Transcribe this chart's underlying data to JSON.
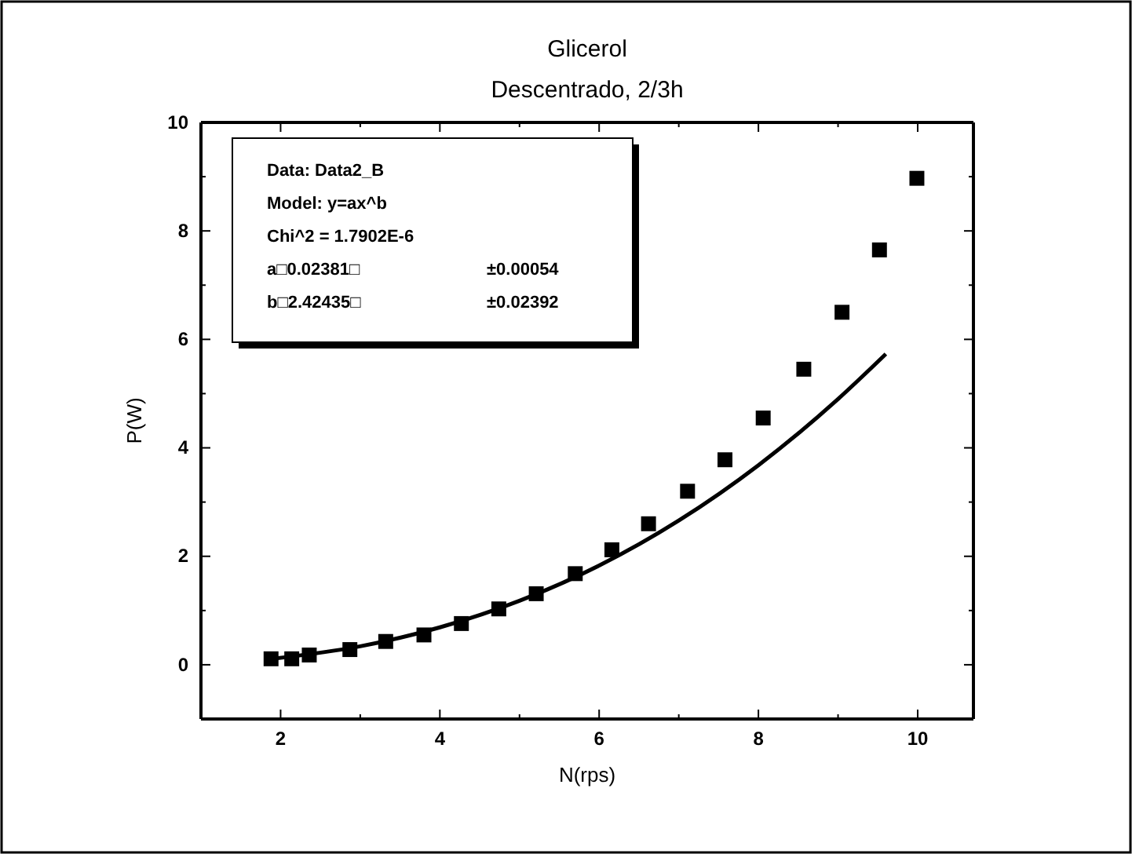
{
  "chart_data": {
    "type": "scatter",
    "title": "Glicerol",
    "subtitle": "Descentrado, 2/3h",
    "xlabel": "N(rps)",
    "ylabel": "P(W)",
    "xlim": [
      1,
      10.7
    ],
    "ylim": [
      -1,
      10
    ],
    "xticks": [
      2,
      4,
      6,
      8,
      10
    ],
    "yticks": [
      0,
      2,
      4,
      6,
      8,
      10
    ],
    "grid": false,
    "series": [
      {
        "marker": "square",
        "color": "#000000",
        "x": [
          1.88,
          2.14,
          2.36,
          2.87,
          3.32,
          3.8,
          4.27,
          4.74,
          5.21,
          5.7,
          6.16,
          6.62,
          7.11,
          7.58,
          8.06,
          8.57,
          9.05,
          9.52,
          9.99
        ],
        "values": [
          0.11,
          0.11,
          0.18,
          0.28,
          0.43,
          0.55,
          0.76,
          1.03,
          1.31,
          1.68,
          2.12,
          2.6,
          3.2,
          3.78,
          4.55,
          5.45,
          6.5,
          7.65,
          8.97
        ]
      },
      {
        "type": "line",
        "marker": "none",
        "line_style": "solid",
        "color": "#000000",
        "x": [
          1.9,
          3,
          4,
          5,
          6,
          7,
          8,
          9,
          9.6
        ],
        "values": [
          0.11,
          0.34,
          0.69,
          1.18,
          1.83,
          2.66,
          3.68,
          4.9,
          5.73
        ]
      }
    ],
    "annotations": [
      "Data: Data2_B",
      "Model: y=ax^b",
      "Chi^2 = 1.7902E-6",
      "a□0.02381□",
      "±0.00054",
      "b□2.42435□",
      "±0.02392"
    ]
  }
}
